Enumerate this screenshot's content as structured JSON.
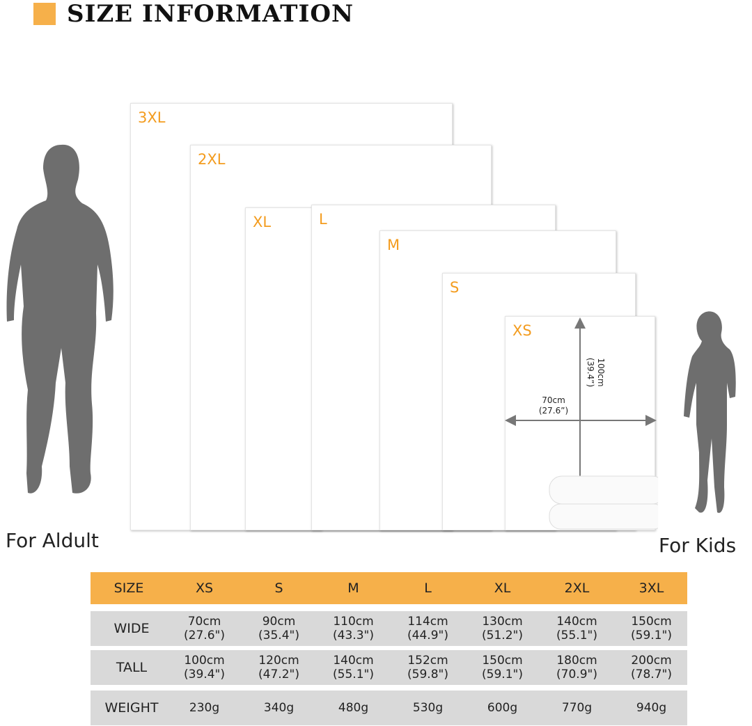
{
  "header": {
    "title": "SIZE INFORMATION"
  },
  "panels": [
    "3XL",
    "2XL",
    "XL",
    "L",
    "M",
    "S",
    "XS"
  ],
  "dimensions": {
    "width": [
      "70cm",
      "(27.6”)"
    ],
    "height": [
      "100cm",
      "(39.4”)"
    ]
  },
  "captions": {
    "adult": "For  Aldult",
    "kids": "For  Kids"
  },
  "table": {
    "header": [
      "SIZE",
      "XS",
      "S",
      "M",
      "L",
      "XL",
      "2XL",
      "3XL"
    ],
    "rows": [
      {
        "label": "WIDE",
        "cells": [
          [
            "70cm",
            "(27.6\")"
          ],
          [
            "90cm",
            "(35.4\")"
          ],
          [
            "110cm",
            "(43.3\")"
          ],
          [
            "114cm",
            "(44.9\")"
          ],
          [
            "130cm",
            "(51.2\")"
          ],
          [
            "140cm",
            "(55.1\")"
          ],
          [
            "150cm",
            "(59.1\")"
          ]
        ]
      },
      {
        "label": "TALL",
        "cells": [
          [
            "100cm",
            "(39.4\")"
          ],
          [
            "120cm",
            "(47.2\")"
          ],
          [
            "140cm",
            "(55.1\")"
          ],
          [
            "152cm",
            "(59.8\")"
          ],
          [
            "150cm",
            "(59.1\")"
          ],
          [
            "180cm",
            "(70.9\")"
          ],
          [
            "200cm",
            "(78.7\")"
          ]
        ]
      },
      {
        "label": "WEIGHT",
        "cells": [
          [
            "230g"
          ],
          [
            "340g"
          ],
          [
            "480g"
          ],
          [
            "530g"
          ],
          [
            "600g"
          ],
          [
            "770g"
          ],
          [
            "940g"
          ]
        ]
      }
    ]
  }
}
